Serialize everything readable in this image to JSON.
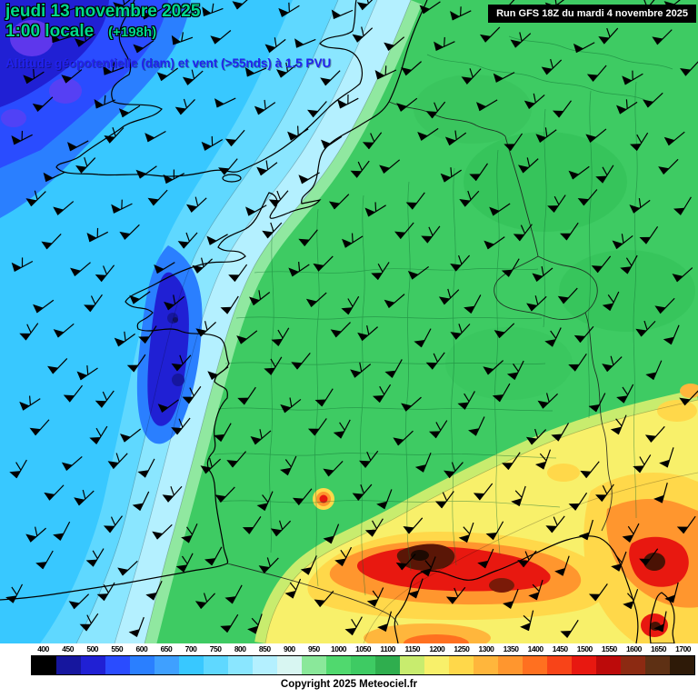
{
  "header": {
    "date_line": "jeudi 13 novembre 2025",
    "time_line": "1:00 locale",
    "forecast_offset": "(+198h)",
    "subtitle": "Altitude géopotentielle (dam) et vent (>55nds) à 1.5 PVU",
    "run_info": "Run GFS 18Z du mardi 4 novembre 2025",
    "title_color": "#00d98c",
    "subtitle_color": "#2222ee"
  },
  "footer": {
    "copyright": "Copyright 2025 Meteociel.fr"
  },
  "scale": {
    "unit": "dam",
    "values": [
      400,
      450,
      500,
      550,
      600,
      650,
      700,
      750,
      800,
      850,
      900,
      950,
      1000,
      1050,
      1100,
      1150,
      1200,
      1250,
      1300,
      1350,
      1400,
      1450,
      1500,
      1550,
      1600,
      1650,
      1700
    ],
    "colors": [
      "#000000",
      "#16169e",
      "#2020d4",
      "#2a4cff",
      "#2a7fff",
      "#3fa0ff",
      "#38c8ff",
      "#5fd8ff",
      "#8ae6ff",
      "#b4f0ff",
      "#d8f6f2",
      "#8ae89a",
      "#50d96e",
      "#3ecb63",
      "#2fae4e",
      "#c8ec6e",
      "#f8f06a",
      "#ffd84a",
      "#ffb63c",
      "#ff962e",
      "#ff7020",
      "#f84418",
      "#e81810",
      "#bc0a0a",
      "#8c2a12",
      "#5e3014",
      "#2e1a08"
    ]
  },
  "map": {
    "barb_color": "#000000",
    "coast_color": "#000000",
    "border_color": "#1a1a1a",
    "department_line_color": "#0e6a30"
  }
}
